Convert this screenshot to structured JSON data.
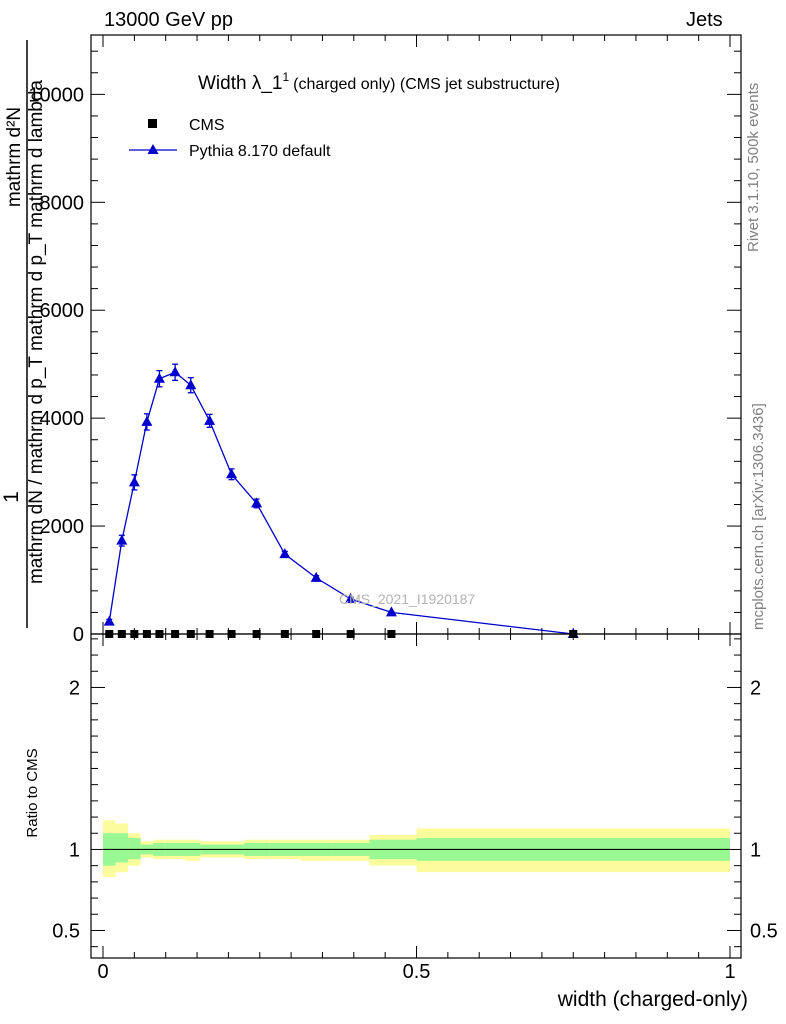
{
  "header": {
    "energy_label": "13000 GeV pp",
    "process_label": "Jets"
  },
  "side_labels": {
    "rivet": "Rivet 3.1.10,  500k events",
    "mcplots": "mcplots.cern.ch [arXiv:1306.3436]"
  },
  "chart_data": {
    "type": "line",
    "title": "Width λ_1",
    "title_sup": "1",
    "title_suffix": "(charged only) (CMS jet substructure)",
    "xlabel": "width (charged-only)",
    "ylabel_top": "1",
    "ylabel_num": "mathrm d²N",
    "ylabel_den": "mathrm dN / mathrm d p_T mathrm d p_T mathrm d lambda",
    "ratio_ylabel": "Ratio to CMS",
    "analysis_label": "CMS_2021_I1920187",
    "xlim": [
      0,
      1
    ],
    "ylim": [
      0,
      11100
    ],
    "ratio_ylim": [
      0.33,
      2.33
    ],
    "main_yticks": [
      0,
      2000,
      4000,
      6000,
      8000,
      10000
    ],
    "main_ytick_labels": [
      "0",
      "2000",
      "4000",
      "6000",
      "8000",
      "10000"
    ],
    "xticks": [
      0,
      0.5,
      1
    ],
    "xtick_labels": [
      "0",
      "0.5",
      "1"
    ],
    "ratio_yticks": [
      0.5,
      1,
      2
    ],
    "ratio_ytick_labels": [
      "0.5",
      "1",
      "2"
    ],
    "series": [
      {
        "name": "CMS",
        "color": "#000000",
        "marker": "square",
        "x": [
          0.01,
          0.03,
          0.05,
          0.07,
          0.09,
          0.115,
          0.14,
          0.17,
          0.205,
          0.245,
          0.29,
          0.34,
          0.395,
          0.46,
          0.75
        ],
        "y": [
          0,
          0,
          0,
          0,
          0,
          0,
          0,
          0,
          0,
          0,
          0,
          0,
          0,
          0,
          0
        ]
      },
      {
        "name": "Pythia 8.170 default",
        "color": "#0000cc",
        "marker": "triangle",
        "x": [
          0.01,
          0.03,
          0.05,
          0.07,
          0.09,
          0.115,
          0.14,
          0.17,
          0.205,
          0.245,
          0.29,
          0.34,
          0.395,
          0.46,
          0.75
        ],
        "y": [
          230,
          1730,
          2810,
          3930,
          4730,
          4850,
          4610,
          3950,
          2960,
          2420,
          1480,
          1040,
          650,
          400,
          0
        ],
        "yerr": [
          40,
          100,
          140,
          150,
          150,
          150,
          140,
          120,
          100,
          80,
          50,
          40,
          30,
          20,
          20
        ]
      }
    ],
    "ratio_bands": [
      {
        "x0": 0.0,
        "x1": 0.02,
        "g": [
          0.9,
          1.1
        ],
        "y": [
          0.83,
          1.18
        ]
      },
      {
        "x0": 0.02,
        "x1": 0.04,
        "g": [
          0.92,
          1.1
        ],
        "y": [
          0.86,
          1.16
        ]
      },
      {
        "x0": 0.04,
        "x1": 0.06,
        "g": [
          0.94,
          1.07
        ],
        "y": [
          0.9,
          1.1
        ]
      },
      {
        "x0": 0.06,
        "x1": 0.08,
        "g": [
          0.97,
          1.03
        ],
        "y": [
          0.95,
          1.05
        ]
      },
      {
        "x0": 0.08,
        "x1": 0.1,
        "g": [
          0.96,
          1.04
        ],
        "y": [
          0.94,
          1.06
        ]
      },
      {
        "x0": 0.1,
        "x1": 0.13,
        "g": [
          0.96,
          1.04
        ],
        "y": [
          0.94,
          1.06
        ]
      },
      {
        "x0": 0.13,
        "x1": 0.155,
        "g": [
          0.96,
          1.04
        ],
        "y": [
          0.93,
          1.06
        ]
      },
      {
        "x0": 0.155,
        "x1": 0.185,
        "g": [
          0.97,
          1.03
        ],
        "y": [
          0.95,
          1.05
        ]
      },
      {
        "x0": 0.185,
        "x1": 0.225,
        "g": [
          0.97,
          1.03
        ],
        "y": [
          0.95,
          1.05
        ]
      },
      {
        "x0": 0.225,
        "x1": 0.265,
        "g": [
          0.96,
          1.04
        ],
        "y": [
          0.94,
          1.06
        ]
      },
      {
        "x0": 0.265,
        "x1": 0.315,
        "g": [
          0.96,
          1.04
        ],
        "y": [
          0.94,
          1.06
        ]
      },
      {
        "x0": 0.315,
        "x1": 0.365,
        "g": [
          0.96,
          1.04
        ],
        "y": [
          0.93,
          1.06
        ]
      },
      {
        "x0": 0.365,
        "x1": 0.425,
        "g": [
          0.96,
          1.04
        ],
        "y": [
          0.93,
          1.06
        ]
      },
      {
        "x0": 0.425,
        "x1": 0.5,
        "g": [
          0.94,
          1.06
        ],
        "y": [
          0.9,
          1.09
        ]
      },
      {
        "x0": 0.5,
        "x1": 1.0,
        "g": [
          0.93,
          1.07
        ],
        "y": [
          0.86,
          1.13
        ]
      }
    ],
    "band_colors": {
      "green": "#99f894",
      "yellow": "#fcfc9c"
    },
    "legend_position": "top-left"
  }
}
